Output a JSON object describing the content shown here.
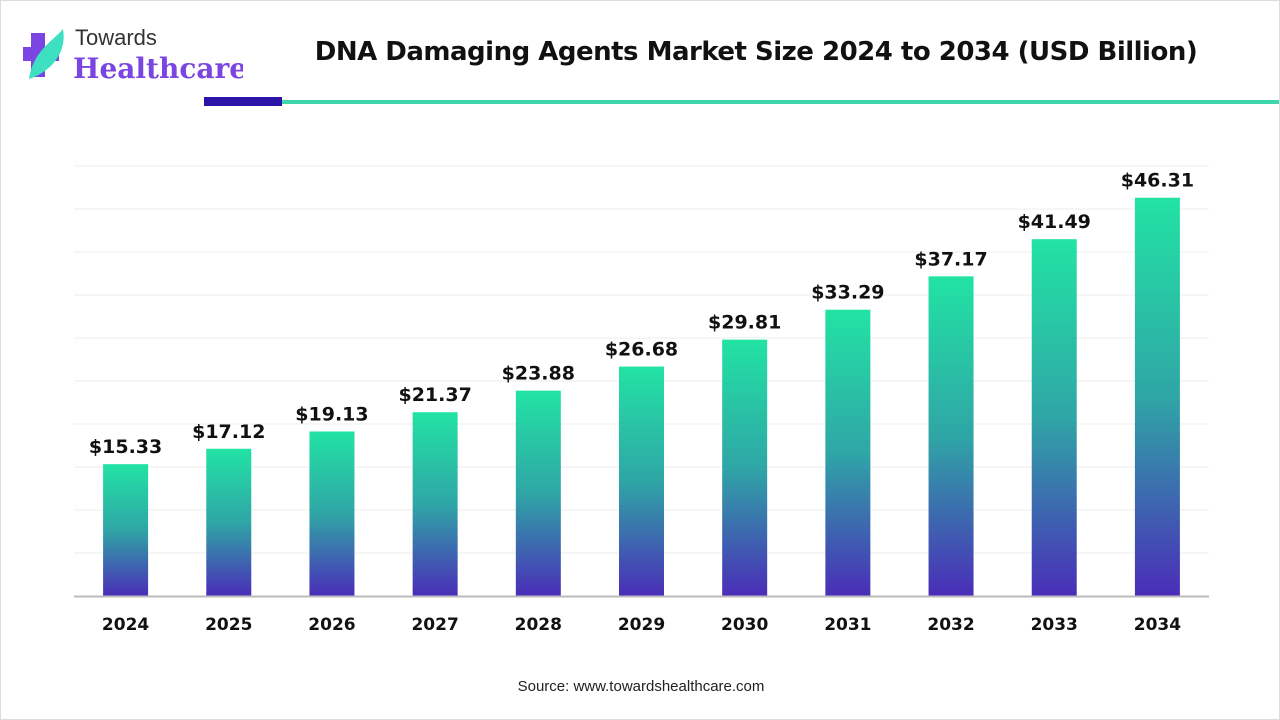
{
  "logo": {
    "line1": "Towards",
    "line2": "Healthcare"
  },
  "colors": {
    "bar_top": "#22e3a4",
    "bar_bottom": "#4a2db8",
    "brand_purple": "#7a45e0",
    "accent_dark": "#2d14a8",
    "accent_teal": "#3dd6ad"
  },
  "source": "Source: www.towardshealthcare.com",
  "chart_data": {
    "type": "bar",
    "title": "DNA Damaging Agents Market Size 2024 to 2034 (USD Billion)",
    "categories": [
      "2024",
      "2025",
      "2026",
      "2027",
      "2028",
      "2029",
      "2030",
      "2031",
      "2032",
      "2033",
      "2034"
    ],
    "values": [
      15.33,
      17.12,
      19.13,
      21.37,
      23.88,
      26.68,
      29.81,
      33.29,
      37.17,
      41.49,
      46.31
    ],
    "data_labels": [
      "$15.33",
      "$17.12",
      "$19.13",
      "$21.37",
      "$23.88",
      "$26.68",
      "$29.81",
      "$33.29",
      "$37.17",
      "$41.49",
      "$46.31"
    ],
    "xlabel": "",
    "ylabel": "",
    "ylim": [
      0,
      50
    ],
    "grid": true,
    "legend": "none"
  }
}
